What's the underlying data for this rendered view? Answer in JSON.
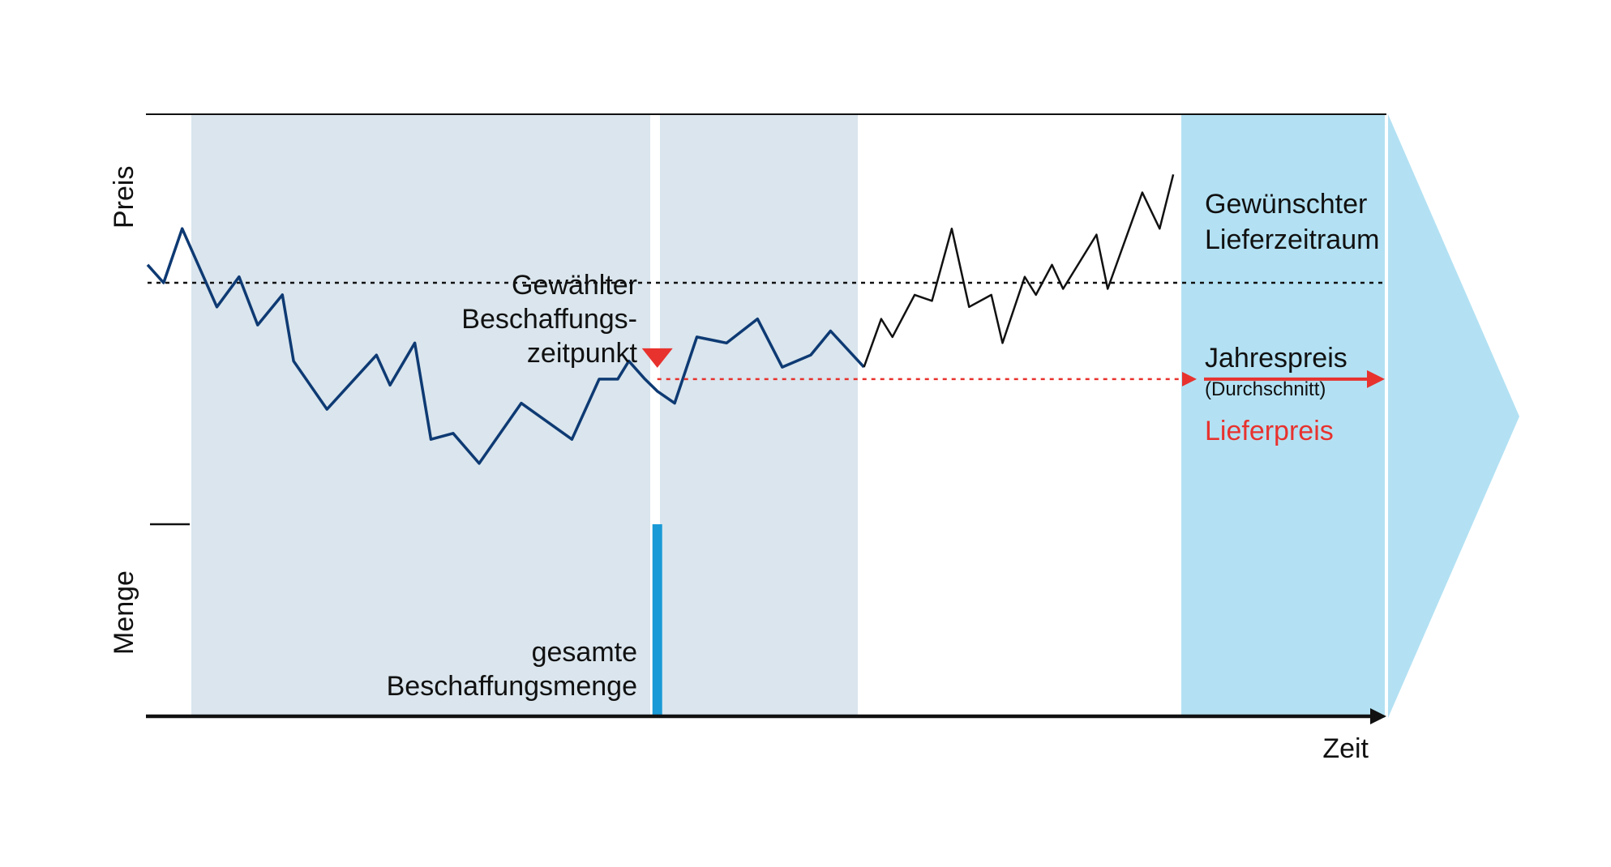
{
  "colors": {
    "shade": "#dae5ed",
    "delivery": "#b3e1f3",
    "bar": "#1a9ad6",
    "curve_past": "#0e3a73",
    "curve_future": "#111111",
    "red": "#e8322e",
    "axis": "#111111"
  },
  "axes": {
    "y_top_label": "Preis",
    "y_bottom_label": "Menge",
    "x_label": "Zeit"
  },
  "labels": {
    "procurement_point": [
      "Gewählter",
      "Beschaffungs-",
      "zeitpunkt"
    ],
    "total_quantity": [
      "gesamte",
      "Beschaffungsmenge"
    ],
    "delivery_period": [
      "Gewünschter",
      "Lieferzeitraum"
    ],
    "annual_price": "Jahrespreis",
    "annual_price_note": "(Durchschnitt)",
    "delivery_price": "Lieferpreis"
  },
  "chart_data": {
    "type": "line",
    "x_range": [
      0,
      100
    ],
    "price_range": [
      0,
      100
    ],
    "annual_price": 72,
    "delivery_price": 56,
    "procurement_time": 41.2,
    "quantity": 100,
    "series": [
      {
        "points": [
          [
            0,
            75
          ],
          [
            1.3,
            72
          ],
          [
            2.8,
            81
          ],
          [
            5.6,
            68
          ],
          [
            7.4,
            73
          ],
          [
            8.9,
            65
          ],
          [
            10.9,
            70
          ],
          [
            11.8,
            59
          ],
          [
            14.5,
            51
          ],
          [
            18.5,
            60
          ],
          [
            19.6,
            55
          ],
          [
            21.6,
            62
          ],
          [
            22.9,
            46
          ],
          [
            24.7,
            47
          ],
          [
            26.8,
            42
          ],
          [
            30.2,
            52
          ],
          [
            34.3,
            46
          ],
          [
            36.5,
            56
          ],
          [
            38,
            56
          ],
          [
            38.9,
            59
          ],
          [
            40.2,
            56
          ],
          [
            41.2,
            54
          ],
          [
            42.6,
            52
          ],
          [
            44.4,
            63
          ],
          [
            46.8,
            62
          ],
          [
            49.3,
            66
          ],
          [
            51.3,
            58
          ],
          [
            53.6,
            60
          ],
          [
            55.2,
            64
          ],
          [
            57.9,
            58
          ]
        ]
      },
      {
        "points": [
          [
            57.9,
            58
          ],
          [
            59.3,
            66
          ],
          [
            60.2,
            63
          ],
          [
            62,
            70
          ],
          [
            63.4,
            69
          ],
          [
            65,
            81
          ],
          [
            66.4,
            68
          ],
          [
            68.2,
            70
          ],
          [
            69.1,
            62
          ],
          [
            70.9,
            73
          ],
          [
            71.8,
            70
          ],
          [
            73.1,
            75
          ],
          [
            74,
            71
          ],
          [
            76.7,
            80
          ],
          [
            77.6,
            71
          ],
          [
            80.4,
            87
          ],
          [
            81.8,
            81
          ],
          [
            82.9,
            90
          ]
        ]
      }
    ]
  }
}
